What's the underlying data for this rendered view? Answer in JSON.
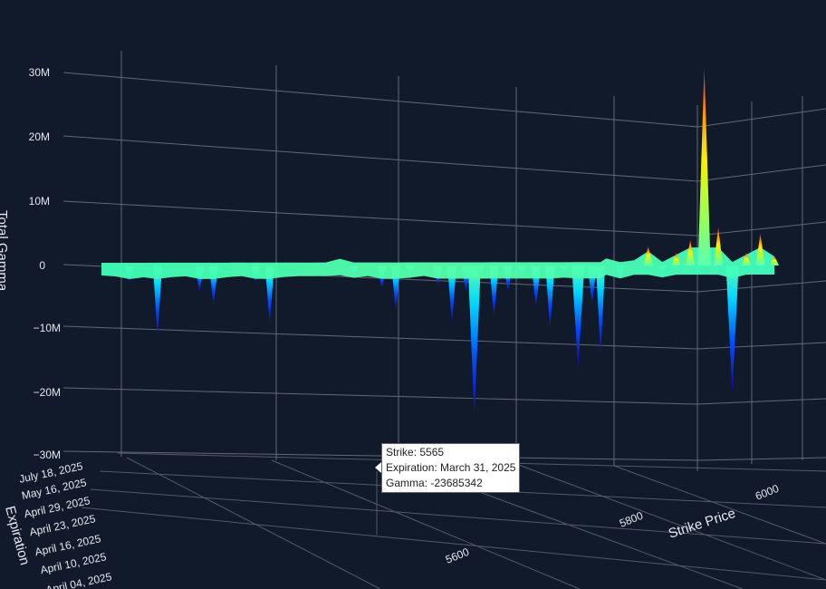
{
  "chart_data": {
    "type": "surface3d",
    "zlabel": "Total Gamma",
    "ylabel": "Expiration",
    "xlabel": "Strike Price",
    "z_ticks": [
      "30M",
      "20M",
      "10M",
      "0",
      "−10M",
      "−20M",
      "−30M"
    ],
    "expiration_ticks": [
      "July 18, 2025",
      "May 16, 2025",
      "April 29, 2025",
      "April 23, 2025",
      "April 16, 2025",
      "April 10, 2025",
      "April 04, 2025"
    ],
    "strike_ticks": [
      "5600",
      "5800",
      "6000"
    ],
    "zlim": [
      -30000000,
      30000000
    ],
    "colorscale": "jet",
    "surface_profile": {
      "x": [
        4900,
        4925,
        4950,
        4975,
        5000,
        5025,
        5050,
        5075,
        5100,
        5125,
        5150,
        5175,
        5200,
        5225,
        5250,
        5275,
        5300,
        5325,
        5350,
        5375,
        5400,
        5425,
        5450,
        5475,
        5500,
        5525,
        5550,
        5565,
        5575,
        5600,
        5625,
        5650,
        5675,
        5700,
        5725,
        5750,
        5775,
        5790,
        5800,
        5825,
        5850,
        5875,
        5900,
        5925,
        5950,
        5975,
        6000,
        6025,
        6050,
        6075,
        6100
      ],
      "z": [
        0,
        -0.5,
        -2.5,
        -1,
        -11,
        -1,
        -0.5,
        -4,
        -6,
        -1,
        -0.5,
        -2.5,
        -9,
        -1,
        -0.5,
        -0.5,
        -0.5,
        1,
        -1.5,
        -0.5,
        -3.5,
        -7,
        -1.5,
        -0.5,
        -3,
        -9,
        -4,
        -23.7,
        -2,
        -8,
        -4,
        -2,
        -6.5,
        -10,
        -1.5,
        -16,
        -6,
        -14,
        1,
        -2,
        0.5,
        3,
        -1.5,
        2,
        4,
        31,
        6,
        -20,
        2,
        5,
        1.5
      ]
    },
    "hover": {
      "strike_label": "Strike",
      "strike": "5565",
      "expiration_label": "Expiration",
      "expiration": "March 31, 2025",
      "gamma_label": "Gamma",
      "gamma": "-23685342"
    }
  },
  "colors": {
    "background": "#111a2a",
    "grid": "#6f7684",
    "surface_top": "#66ffaa",
    "surface_mid": "#00c8ff",
    "surface_low": "#0033ff",
    "spike_hot": "#ff2a00"
  }
}
